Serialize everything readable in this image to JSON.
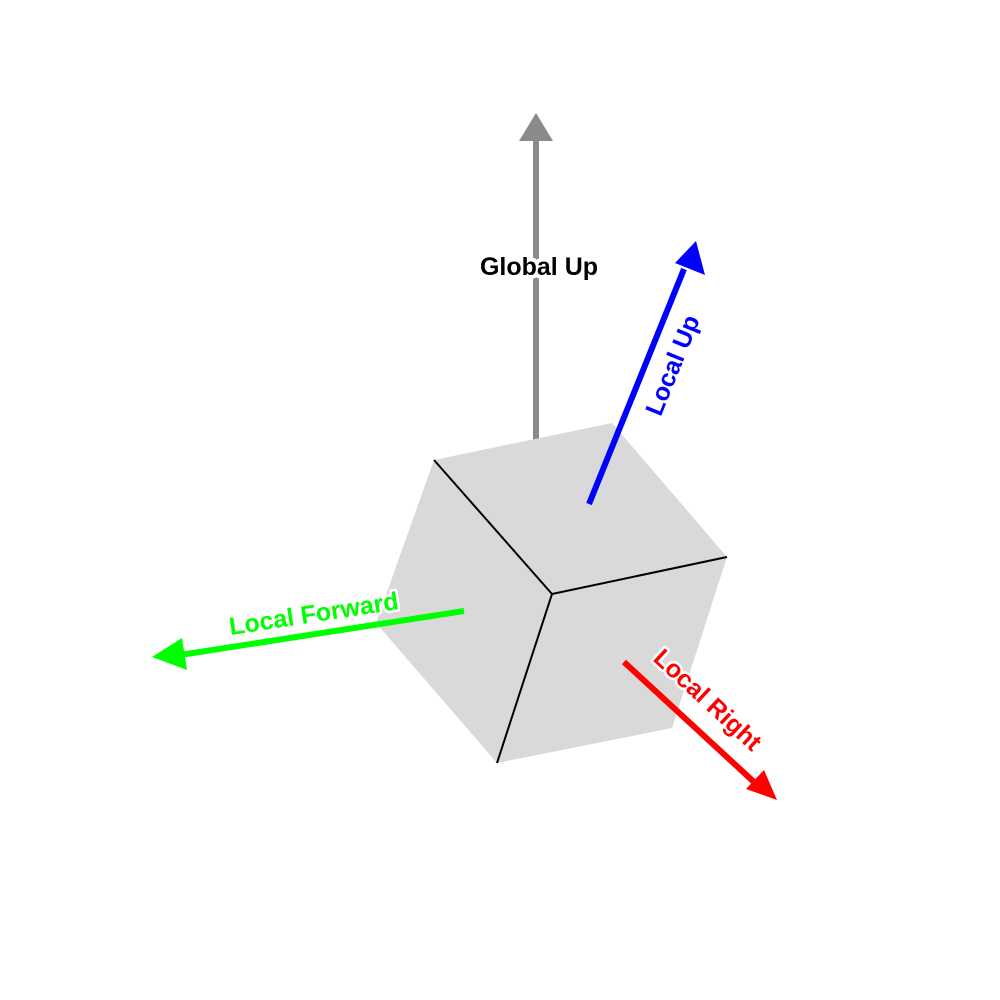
{
  "labels": {
    "global_up": "Global Up",
    "local_up": "Local Up",
    "local_forward": "Local Forward",
    "local_right": "Local Right"
  },
  "colors": {
    "global_up": "#8a8a8a",
    "local_up": "#0000ff",
    "local_forward": "#00ff00",
    "local_right": "#ff0000",
    "cube_fill": "#d9d9d9",
    "cube_edge": "#000000",
    "global_up_label": "#000000"
  },
  "icons": {
    "global_up": "arrow-up-icon",
    "local_up": "arrow-up-right-icon",
    "local_forward": "arrow-left-icon",
    "local_right": "arrow-down-right-icon"
  }
}
